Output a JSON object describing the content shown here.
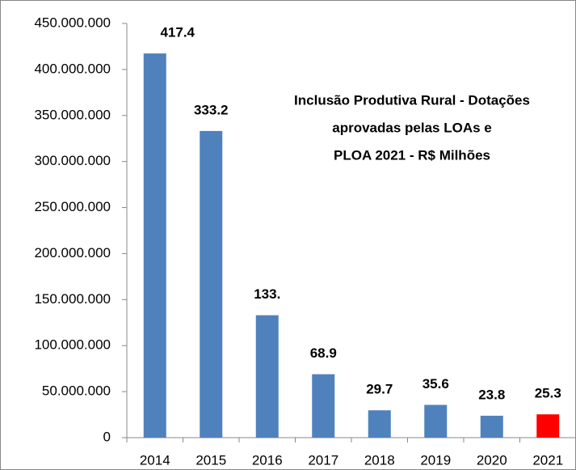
{
  "chart_data": {
    "type": "bar",
    "title": [
      "Inclusão Produtiva Rural - Dotações",
      "aprovadas pelas LOAs  e",
      "PLOA 2021 - R$ Milhões"
    ],
    "categories": [
      "2014",
      "2015",
      "2016",
      "2017",
      "2018",
      "2019",
      "2020",
      "2021"
    ],
    "values": [
      417400000,
      333200000,
      133000000,
      68900000,
      29700000,
      35600000,
      23800000,
      25300000
    ],
    "value_labels": [
      "417.4",
      "333.2",
      "133.",
      "68.9",
      "29.7",
      "35.6",
      "23.8",
      "25.3"
    ],
    "colors": [
      "#4f81bd",
      "#4f81bd",
      "#4f81bd",
      "#4f81bd",
      "#4f81bd",
      "#4f81bd",
      "#4f81bd",
      "#ff0000"
    ],
    "ylim": [
      0,
      450000000
    ],
    "yticks": [
      0,
      {
        "value": 50000000,
        "label": "50.000.000"
      },
      {
        "value": 100000000,
        "label": "100.000.000"
      },
      {
        "value": 150000000,
        "label": "150.000.000"
      },
      {
        "value": 200000000,
        "label": "200.000.000"
      },
      {
        "value": 250000000,
        "label": "250.000.000"
      },
      {
        "value": 300000000,
        "label": "300.000.000"
      },
      {
        "value": 350000000,
        "label": "350.000.000"
      },
      {
        "value": 400000000,
        "label": "400.000.000"
      },
      {
        "value": 450000000,
        "label": "450.000.000"
      }
    ],
    "grid": false
  }
}
